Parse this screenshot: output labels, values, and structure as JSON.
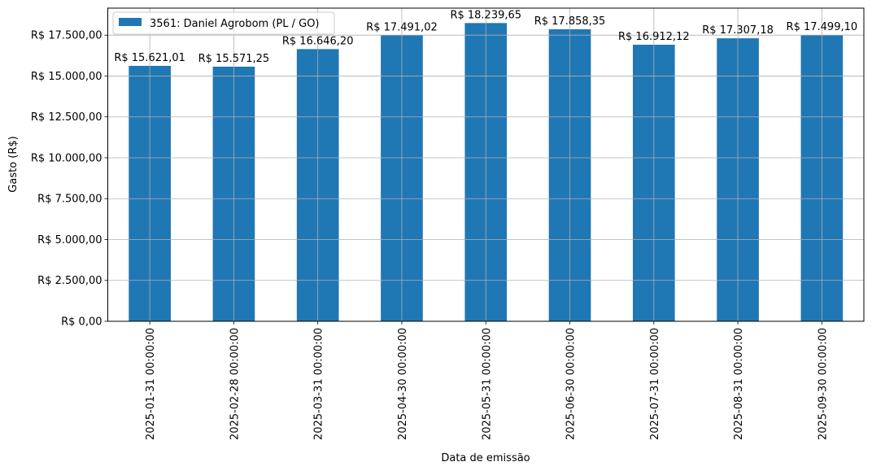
{
  "chart_data": {
    "type": "bar",
    "title": "",
    "xlabel": "Data de emissão",
    "ylabel": "Gasto (R$)",
    "categories": [
      "2025-01-31 00:00:00",
      "2025-02-28 00:00:00",
      "2025-03-31 00:00:00",
      "2025-04-30 00:00:00",
      "2025-05-31 00:00:00",
      "2025-06-30 00:00:00",
      "2025-07-31 00:00:00",
      "2025-08-31 00:00:00",
      "2025-09-30 00:00:00"
    ],
    "series": [
      {
        "name": "3561: Daniel Agrobom (PL / GO)",
        "color": "#1f77b4",
        "values": [
          15621.01,
          15571.25,
          16646.2,
          17491.02,
          18239.65,
          17858.35,
          16912.12,
          17307.18,
          17499.1
        ]
      }
    ],
    "data_labels": [
      "R$ 15.621,01",
      "R$ 15.571,25",
      "R$ 16.646,20",
      "R$ 17.491,02",
      "R$ 18.239,65",
      "R$ 17.858,35",
      "R$ 16.912,12",
      "R$ 17.307,18",
      "R$ 17.499,10"
    ],
    "yticks": [
      0,
      2500,
      5000,
      7500,
      10000,
      12500,
      15000,
      17500
    ],
    "ytick_labels": [
      "R$ 0,00",
      "R$ 2.500,00",
      "R$ 5.000,00",
      "R$ 7.500,00",
      "R$ 10.000,00",
      "R$ 12.500,00",
      "R$ 15.000,00",
      "R$ 17.500,00"
    ],
    "ylim": [
      0,
      19151.6
    ],
    "grid": true,
    "legend_position": "top-left"
  }
}
